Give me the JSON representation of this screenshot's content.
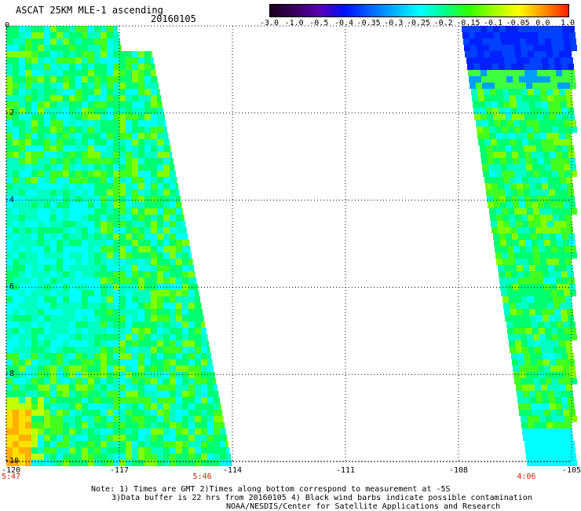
{
  "title": "ASCAT 25KM MLE-1 ascending",
  "date": "20160105",
  "legend": {
    "labels": [
      "-3.0",
      "-1.0",
      "-0.5",
      "-0.4",
      "-0.35",
      "-0.3",
      "-0.25",
      "-0.2",
      "-0.15",
      "-0.1",
      "-0.05",
      "0.0",
      "1.0"
    ],
    "colors": [
      "#1a001a",
      "#3a0060",
      "#5a00b0",
      "#0010ff",
      "#0060ff",
      "#00b0ff",
      "#00ffff",
      "#00ff90",
      "#30ff00",
      "#a0ff00",
      "#ffff00",
      "#ff9000",
      "#ff2000"
    ]
  },
  "axes": {
    "lat_labels": [
      "0",
      "-2",
      "-4",
      "-6",
      "-8",
      "-10"
    ],
    "lon_labels": [
      "-120",
      "-117",
      "-114",
      "-111",
      "-108",
      "-105"
    ],
    "lat_range": [
      -10,
      0
    ],
    "lon_range": [
      -120,
      -105
    ],
    "grid": true
  },
  "time_labels": [
    {
      "text": "5:47",
      "lon": -120
    },
    {
      "text": "5:46",
      "lon": -114.8
    },
    {
      "text": "4:06",
      "lon": -106.2
    }
  ],
  "notes": {
    "line1": "Note: 1) Times are GMT 2)Times along bottom correspond to measurement at -5S",
    "line2": "3)Data buffer is 22 hrs from 20160105 4) Black wind barbs indicate possible contamination",
    "line3": "NOAA/NESDIS/Center for Satellite Applications and Research"
  }
}
